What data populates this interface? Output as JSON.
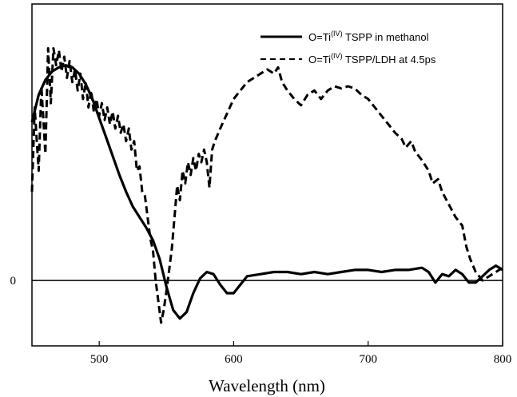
{
  "chart_data": {
    "type": "line",
    "xlabel": "Wavelength (nm)",
    "ylabel": "",
    "xlim": [
      450,
      800
    ],
    "ylim": [
      -0.31,
      1.31
    ],
    "x_ticks": [
      500,
      600,
      700,
      800
    ],
    "y_ticks": [
      0
    ],
    "y_tick_labels": [
      "0"
    ],
    "grid": false,
    "legend_position": "top-right",
    "zero_line": true,
    "series": [
      {
        "name_prefix": "O=Ti",
        "name_sup": "(IV)",
        "name_suffix": " TSPP in methanol",
        "style": "solid",
        "color": "#000000",
        "points": [
          [
            450,
            0.75
          ],
          [
            455,
            0.88
          ],
          [
            460,
            0.95
          ],
          [
            465,
            0.99
          ],
          [
            470,
            1.01
          ],
          [
            475,
            1.02
          ],
          [
            480,
            1.01
          ],
          [
            485,
            0.98
          ],
          [
            490,
            0.93
          ],
          [
            495,
            0.86
          ],
          [
            500,
            0.77
          ],
          [
            505,
            0.68
          ],
          [
            510,
            0.59
          ],
          [
            515,
            0.5
          ],
          [
            520,
            0.42
          ],
          [
            525,
            0.35
          ],
          [
            530,
            0.3
          ],
          [
            535,
            0.25
          ],
          [
            540,
            0.19
          ],
          [
            545,
            0.1
          ],
          [
            550,
            -0.03
          ],
          [
            555,
            -0.14
          ],
          [
            560,
            -0.18
          ],
          [
            565,
            -0.15
          ],
          [
            570,
            -0.06
          ],
          [
            575,
            0.01
          ],
          [
            580,
            0.04
          ],
          [
            585,
            0.03
          ],
          [
            590,
            -0.02
          ],
          [
            595,
            -0.06
          ],
          [
            600,
            -0.06
          ],
          [
            605,
            -0.02
          ],
          [
            610,
            0.02
          ],
          [
            620,
            0.03
          ],
          [
            630,
            0.04
          ],
          [
            640,
            0.04
          ],
          [
            650,
            0.03
          ],
          [
            660,
            0.04
          ],
          [
            670,
            0.03
          ],
          [
            680,
            0.04
          ],
          [
            690,
            0.05
          ],
          [
            700,
            0.05
          ],
          [
            710,
            0.04
          ],
          [
            720,
            0.05
          ],
          [
            730,
            0.05
          ],
          [
            740,
            0.06
          ],
          [
            745,
            0.04
          ],
          [
            750,
            -0.01
          ],
          [
            755,
            0.03
          ],
          [
            760,
            0.02
          ],
          [
            765,
            0.05
          ],
          [
            770,
            0.03
          ],
          [
            775,
            -0.01
          ],
          [
            780,
            -0.01
          ],
          [
            785,
            0.02
          ],
          [
            790,
            0.05
          ],
          [
            795,
            0.07
          ],
          [
            800,
            0.05
          ]
        ]
      },
      {
        "name_prefix": "O=Ti",
        "name_sup": "(IV)",
        "name_suffix": " TSPP/LDH at 4.5ps",
        "style": "dashed",
        "color": "#000000",
        "points": [
          [
            450,
            0.42
          ],
          [
            452,
            0.82
          ],
          [
            455,
            0.52
          ],
          [
            457,
            0.92
          ],
          [
            460,
            0.6
          ],
          [
            462,
            1.1
          ],
          [
            464,
            0.84
          ],
          [
            466,
            1.1
          ],
          [
            468,
            1.02
          ],
          [
            470,
            1.09
          ],
          [
            472,
            0.99
          ],
          [
            474,
            1.06
          ],
          [
            476,
            0.96
          ],
          [
            478,
            1.04
          ],
          [
            480,
            0.94
          ],
          [
            482,
            1.0
          ],
          [
            484,
            0.9
          ],
          [
            486,
            0.98
          ],
          [
            488,
            0.86
          ],
          [
            490,
            0.94
          ],
          [
            492,
            0.82
          ],
          [
            494,
            0.9
          ],
          [
            496,
            0.8
          ],
          [
            498,
            0.86
          ],
          [
            500,
            0.78
          ],
          [
            502,
            0.84
          ],
          [
            504,
            0.76
          ],
          [
            506,
            0.82
          ],
          [
            508,
            0.74
          ],
          [
            510,
            0.8
          ],
          [
            512,
            0.72
          ],
          [
            514,
            0.78
          ],
          [
            516,
            0.7
          ],
          [
            518,
            0.74
          ],
          [
            520,
            0.66
          ],
          [
            522,
            0.72
          ],
          [
            524,
            0.62
          ],
          [
            526,
            0.66
          ],
          [
            528,
            0.52
          ],
          [
            530,
            0.54
          ],
          [
            532,
            0.42
          ],
          [
            534,
            0.4
          ],
          [
            536,
            0.3
          ],
          [
            538,
            0.2
          ],
          [
            540,
            0.14
          ],
          [
            542,
            0.0
          ],
          [
            544,
            -0.1
          ],
          [
            546,
            -0.2
          ],
          [
            548,
            -0.14
          ],
          [
            550,
            -0.05
          ],
          [
            552,
            0.05
          ],
          [
            554,
            0.15
          ],
          [
            556,
            0.3
          ],
          [
            558,
            0.45
          ],
          [
            560,
            0.38
          ],
          [
            562,
            0.52
          ],
          [
            564,
            0.46
          ],
          [
            566,
            0.56
          ],
          [
            568,
            0.5
          ],
          [
            570,
            0.58
          ],
          [
            572,
            0.52
          ],
          [
            574,
            0.6
          ],
          [
            576,
            0.56
          ],
          [
            578,
            0.62
          ],
          [
            580,
            0.56
          ],
          [
            582,
            0.44
          ],
          [
            584,
            0.62
          ],
          [
            586,
            0.66
          ],
          [
            590,
            0.72
          ],
          [
            595,
            0.79
          ],
          [
            600,
            0.86
          ],
          [
            605,
            0.9
          ],
          [
            610,
            0.94
          ],
          [
            615,
            0.96
          ],
          [
            620,
            0.98
          ],
          [
            625,
            1.0
          ],
          [
            630,
            0.98
          ],
          [
            633,
            1.01
          ],
          [
            636,
            0.94
          ],
          [
            640,
            0.9
          ],
          [
            645,
            0.86
          ],
          [
            650,
            0.83
          ],
          [
            655,
            0.88
          ],
          [
            660,
            0.9
          ],
          [
            665,
            0.86
          ],
          [
            670,
            0.9
          ],
          [
            675,
            0.92
          ],
          [
            680,
            0.91
          ],
          [
            685,
            0.92
          ],
          [
            690,
            0.91
          ],
          [
            695,
            0.88
          ],
          [
            700,
            0.86
          ],
          [
            705,
            0.82
          ],
          [
            710,
            0.78
          ],
          [
            715,
            0.74
          ],
          [
            720,
            0.7
          ],
          [
            725,
            0.67
          ],
          [
            728,
            0.63
          ],
          [
            732,
            0.66
          ],
          [
            735,
            0.61
          ],
          [
            740,
            0.57
          ],
          [
            745,
            0.52
          ],
          [
            748,
            0.46
          ],
          [
            752,
            0.48
          ],
          [
            755,
            0.42
          ],
          [
            760,
            0.36
          ],
          [
            765,
            0.3
          ],
          [
            770,
            0.26
          ],
          [
            773,
            0.16
          ],
          [
            776,
            0.1
          ],
          [
            780,
            0.04
          ],
          [
            785,
            0.0
          ],
          [
            790,
            0.02
          ],
          [
            795,
            0.04
          ],
          [
            800,
            0.06
          ]
        ]
      }
    ]
  }
}
